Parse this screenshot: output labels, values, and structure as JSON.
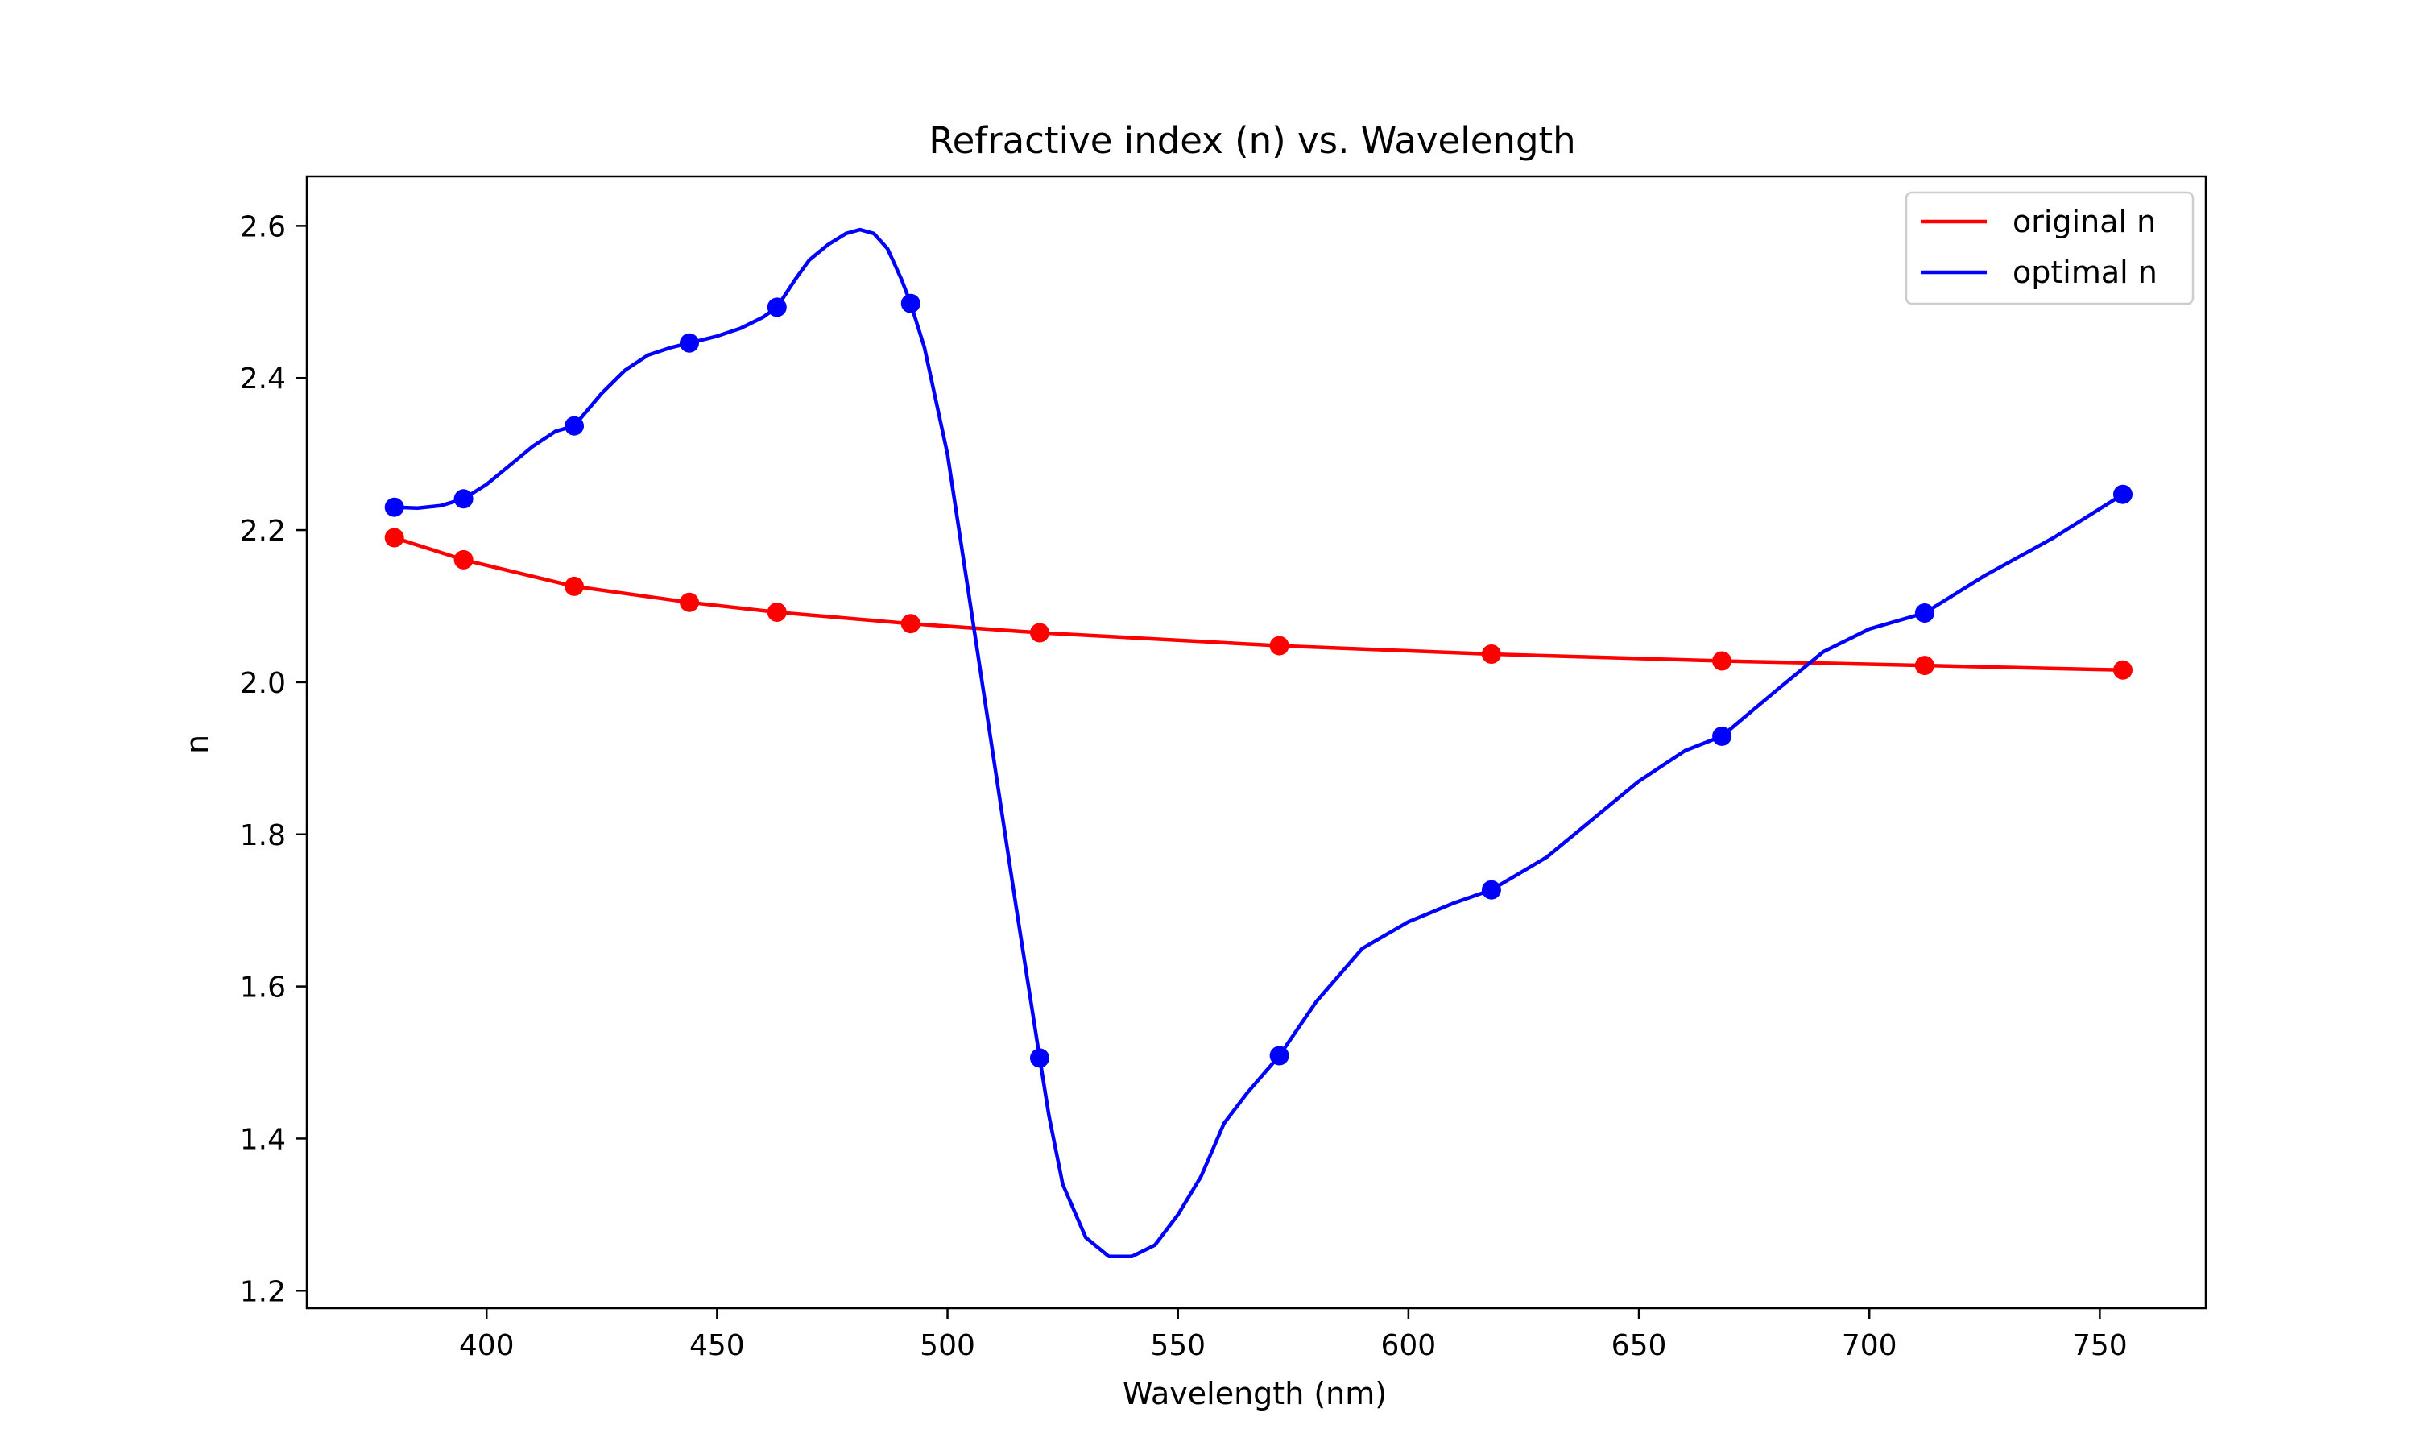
{
  "chart_data": {
    "type": "line",
    "title": "Refractive index (n) vs. Wavelength",
    "xlabel": "Wavelength (nm)",
    "ylabel": "n",
    "xlim": [
      361,
      773
    ],
    "ylim": [
      1.177,
      2.665
    ],
    "xticks": [
      400,
      450,
      500,
      550,
      600,
      650,
      700,
      750
    ],
    "yticks": [
      1.2,
      1.4,
      1.6,
      1.8,
      2.0,
      2.2,
      2.4,
      2.6
    ],
    "grid": false,
    "legend_position": "top-right",
    "series": [
      {
        "name": "original n",
        "color": "#ff0000",
        "marker": "circle",
        "x": [
          380,
          395,
          419,
          444,
          463,
          492,
          520,
          572,
          618,
          668,
          712,
          755
        ],
        "y": [
          2.19,
          2.161,
          2.126,
          2.105,
          2.092,
          2.077,
          2.065,
          2.048,
          2.037,
          2.028,
          2.022,
          2.016
        ]
      },
      {
        "name": "optimal n",
        "color": "#0000ff",
        "marker": "circle",
        "x": [
          380,
          395,
          419,
          444,
          463,
          492,
          520,
          572,
          618,
          668,
          712,
          755
        ],
        "y": [
          2.23,
          2.241,
          2.337,
          2.446,
          2.493,
          2.498,
          1.506,
          1.509,
          1.727,
          1.929,
          2.091,
          2.247
        ],
        "curve": {
          "x": [
            380,
            385,
            390,
            395,
            400,
            405,
            410,
            415,
            419,
            425,
            430,
            435,
            440,
            444,
            450,
            455,
            460,
            463,
            467,
            470,
            474,
            478,
            481,
            484,
            487,
            490,
            492,
            495,
            500,
            505,
            510,
            515,
            520,
            522,
            525,
            530,
            535,
            540,
            545,
            550,
            555,
            560,
            565,
            572,
            580,
            590,
            600,
            610,
            618,
            630,
            640,
            650,
            660,
            668,
            680,
            690,
            700,
            712,
            725,
            740,
            755
          ],
          "y": [
            2.23,
            2.229,
            2.232,
            2.241,
            2.26,
            2.285,
            2.31,
            2.33,
            2.337,
            2.38,
            2.41,
            2.43,
            2.44,
            2.446,
            2.455,
            2.465,
            2.48,
            2.493,
            2.53,
            2.555,
            2.575,
            2.59,
            2.595,
            2.59,
            2.57,
            2.53,
            2.498,
            2.44,
            2.3,
            2.1,
            1.9,
            1.7,
            1.506,
            1.43,
            1.34,
            1.27,
            1.245,
            1.245,
            1.26,
            1.3,
            1.35,
            1.42,
            1.46,
            1.509,
            1.58,
            1.65,
            1.685,
            1.71,
            1.727,
            1.77,
            1.82,
            1.87,
            1.91,
            1.929,
            1.99,
            2.04,
            2.07,
            2.091,
            2.14,
            2.19,
            2.247
          ]
        }
      }
    ]
  }
}
